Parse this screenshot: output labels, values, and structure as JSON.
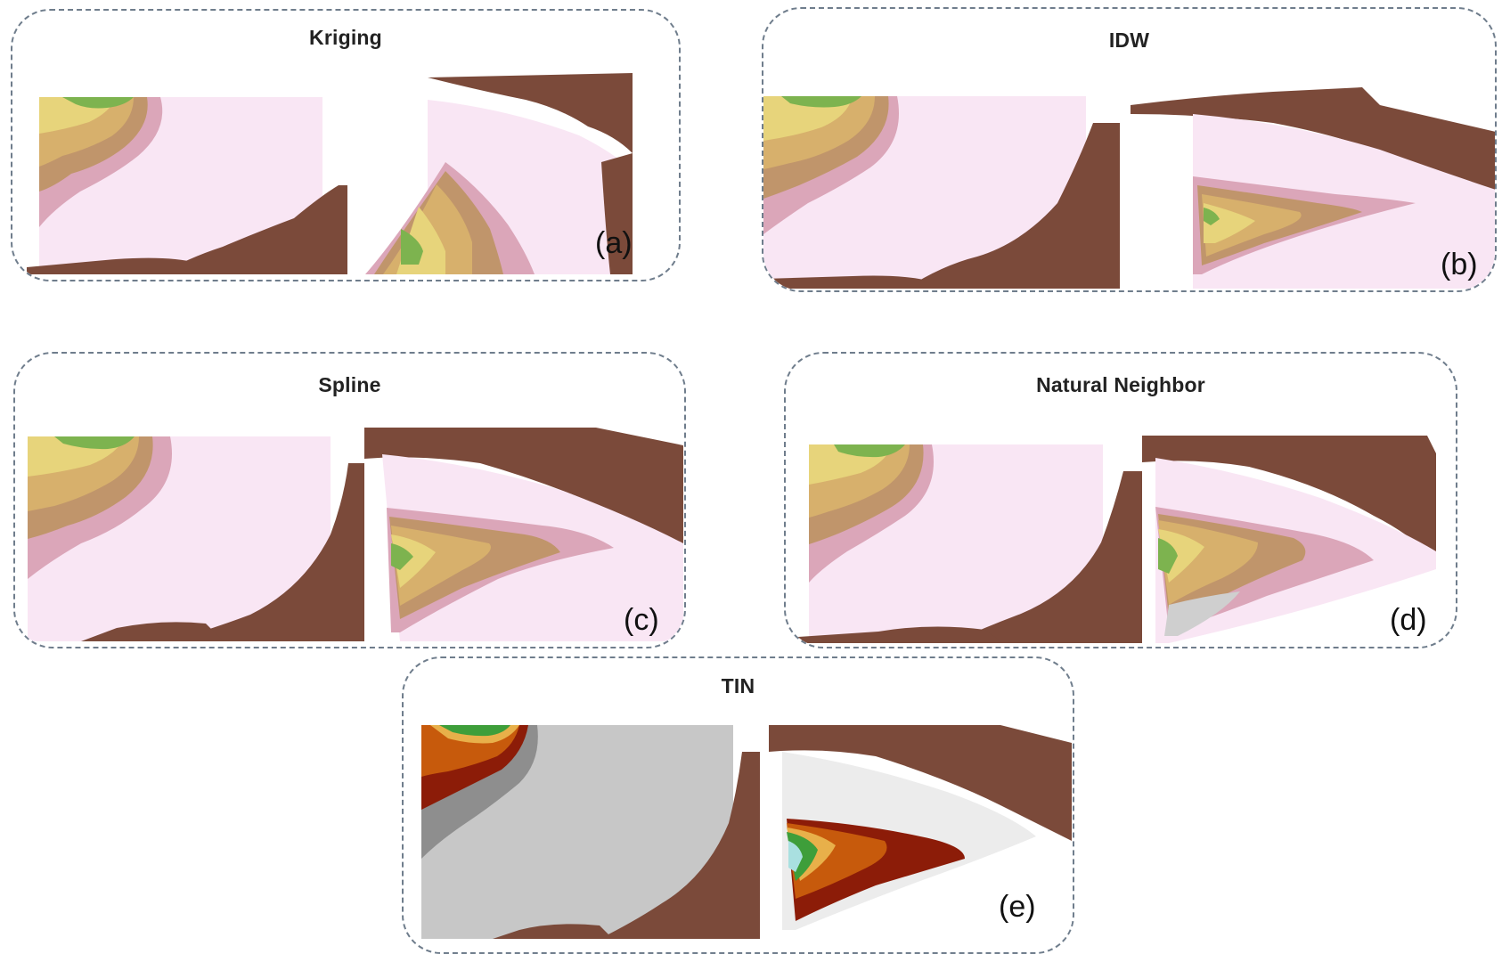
{
  "panels": [
    {
      "id": "a",
      "title": "Kriging",
      "label": "(a)"
    },
    {
      "id": "b",
      "title": "IDW",
      "label": "(b)"
    },
    {
      "id": "c",
      "title": "Spline",
      "label": "(c)"
    },
    {
      "id": "d",
      "title": "Natural Neighbor",
      "label": "(d)"
    },
    {
      "id": "e",
      "title": "TIN",
      "label": "(e)"
    }
  ],
  "colors": {
    "land": "#7b4a3a",
    "sea": "#f9e6f4",
    "contour_pink": "#dba6b9",
    "contour_brown": "#c0956b",
    "contour_tan": "#d7b06c",
    "contour_yellow": "#e7d47b",
    "contour_green": "#7db34f",
    "tin_grey": "#c7c7c7",
    "tin_dark_grey": "#8e8e8e",
    "tin_red": "#8c1c08",
    "tin_orange": "#c75a0c",
    "tin_green": "#3e9e3a"
  }
}
